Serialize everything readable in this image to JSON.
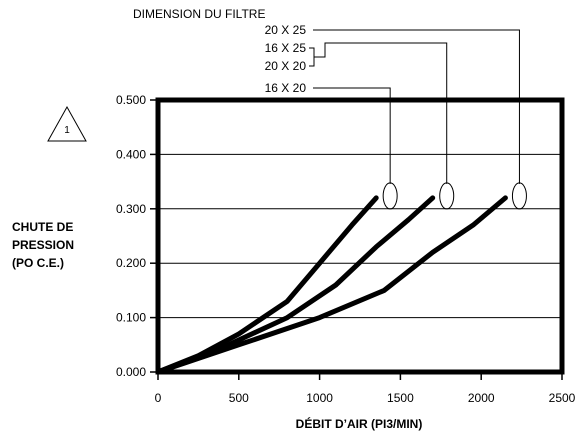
{
  "chart_data": {
    "type": "line",
    "title": "DIMENSION DU FILTRE",
    "note_marker": "1",
    "ylabel": [
      "CHUTE DE",
      "PRESSION",
      "(PO C.E.)"
    ],
    "xlabel": "DÉBIT D’AIR (PI3/MIN)",
    "xlim": [
      0,
      2500
    ],
    "ylim": [
      0,
      0.5
    ],
    "x_ticks": [
      0,
      500,
      1000,
      1500,
      2000,
      2500
    ],
    "y_ticks": [
      0.0,
      0.1,
      0.2,
      0.3,
      0.4,
      0.5
    ],
    "x_tick_labels": [
      "0",
      "500",
      "1000",
      "1500",
      "2000",
      "2500"
    ],
    "y_tick_labels": [
      "0.000",
      "0.100",
      "0.200",
      "0.300",
      "0.400",
      "0.500"
    ],
    "grid": "horizontal",
    "filter_labels": [
      {
        "text": "20 X 25",
        "series": 2
      },
      {
        "text": "16 X 25",
        "series": 1
      },
      {
        "text": "20 X 20",
        "series": 1
      },
      {
        "text": "16 X 20",
        "series": 0
      }
    ],
    "series": [
      {
        "x": [
          0,
          250,
          500,
          800,
          1000,
          1200,
          1350
        ],
        "y": [
          0,
          0.03,
          0.07,
          0.13,
          0.2,
          0.27,
          0.32
        ]
      },
      {
        "x": [
          0,
          400,
          800,
          1100,
          1350,
          1550,
          1700
        ],
        "y": [
          0,
          0.045,
          0.1,
          0.16,
          0.23,
          0.28,
          0.32
        ]
      },
      {
        "x": [
          0,
          500,
          1000,
          1400,
          1700,
          1950,
          2150
        ],
        "y": [
          0,
          0.05,
          0.1,
          0.15,
          0.22,
          0.27,
          0.32
        ]
      }
    ]
  }
}
